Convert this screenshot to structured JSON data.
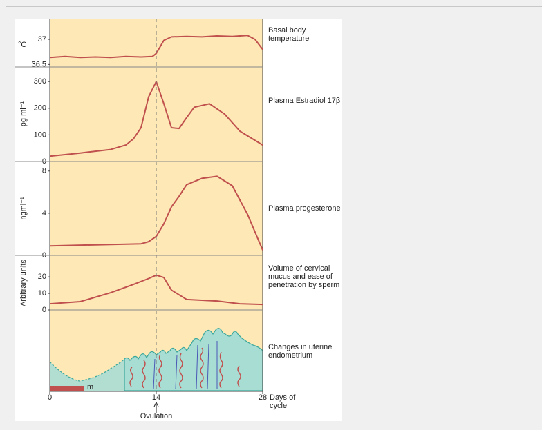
{
  "chart_data": [
    {
      "type": "line",
      "ylabel": "°C",
      "label": "Basal body temperature",
      "color": "#c0504d",
      "x": [
        0,
        2,
        4,
        6,
        8,
        10,
        12,
        13.5,
        14,
        15,
        16,
        18,
        20,
        22,
        24,
        26,
        27,
        28
      ],
      "values": [
        36.64,
        36.66,
        36.64,
        36.65,
        36.64,
        36.66,
        36.65,
        36.66,
        36.72,
        36.98,
        37.05,
        37.06,
        37.05,
        37.07,
        37.06,
        37.08,
        37.0,
        36.8
      ],
      "ylim": [
        36.45,
        37.4
      ],
      "yticks": [
        36.5,
        37
      ]
    },
    {
      "type": "line",
      "ylabel": "pg ml⁻¹",
      "label": "Plasma Estradiol 17β",
      "color": "#c0504d",
      "x": [
        0,
        4,
        8,
        10,
        11,
        12,
        13,
        14,
        15,
        16,
        17,
        18,
        19,
        21,
        23,
        25,
        28
      ],
      "values": [
        20,
        32,
        45,
        62,
        85,
        127,
        243,
        300,
        217,
        127,
        124,
        165,
        204,
        217,
        178,
        114,
        62
      ],
      "ylim": [
        0,
        355
      ],
      "yticks": [
        0,
        100,
        200,
        300
      ]
    },
    {
      "type": "line",
      "ylabel": "ngml⁻¹",
      "label": "Plasma progesterone",
      "color": "#c0504d",
      "x": [
        0,
        6,
        12,
        13,
        14,
        15,
        16,
        17,
        18,
        20,
        22,
        24,
        26,
        28
      ],
      "values": [
        0.9,
        1.0,
        1.1,
        1.3,
        1.8,
        3,
        4.6,
        5.6,
        6.7,
        7.3,
        7.5,
        6.6,
        3.9,
        0.5
      ],
      "ylim": [
        0,
        8.9
      ],
      "yticks": [
        0,
        4,
        8
      ]
    },
    {
      "type": "line",
      "ylabel": "Arbitrary units",
      "label": "Volume of cervical mucus and ease of penetration by sperm",
      "color": "#c0504d",
      "x": [
        0,
        4,
        8,
        11,
        13,
        14,
        15,
        16,
        18,
        22,
        25,
        28
      ],
      "values": [
        3.7,
        5,
        10.4,
        15.4,
        19,
        21,
        19.6,
        12,
        6.3,
        5.4,
        3.7,
        3.3
      ],
      "ylim": [
        0,
        33
      ],
      "yticks": [
        0,
        10,
        20
      ]
    }
  ],
  "endometrium": {
    "label": "Changes in uterine endometrium",
    "marker": "m"
  },
  "x_axis": {
    "xlim": [
      0,
      28
    ],
    "xticks": [
      0,
      14,
      28
    ],
    "xlabel": "Days of cycle",
    "annotation": "Ovulation"
  }
}
